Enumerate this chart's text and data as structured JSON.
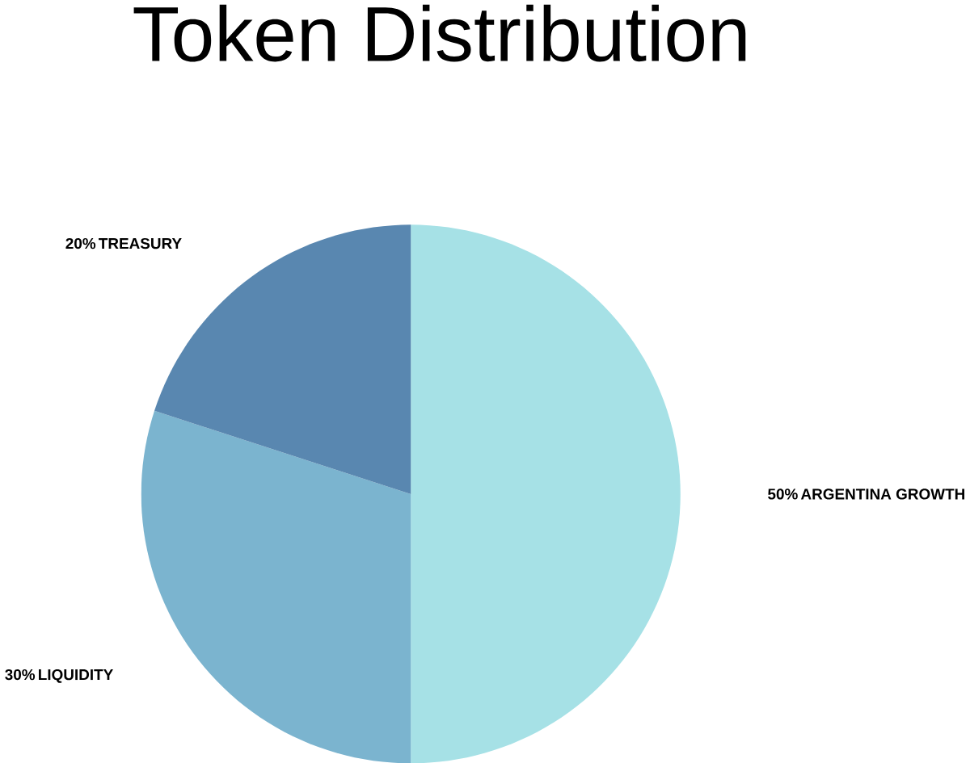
{
  "chart_data": {
    "type": "pie",
    "title": "Token Distribution",
    "categories": [
      "ARGENTINA GROWTH",
      "LIQUIDITY",
      "TREASURY"
    ],
    "values": [
      50,
      30,
      20
    ],
    "value_labels": [
      "50%",
      "30%",
      "20%"
    ],
    "colors": [
      "#a6e1e6",
      "#7bb4cf",
      "#5987b0"
    ]
  }
}
